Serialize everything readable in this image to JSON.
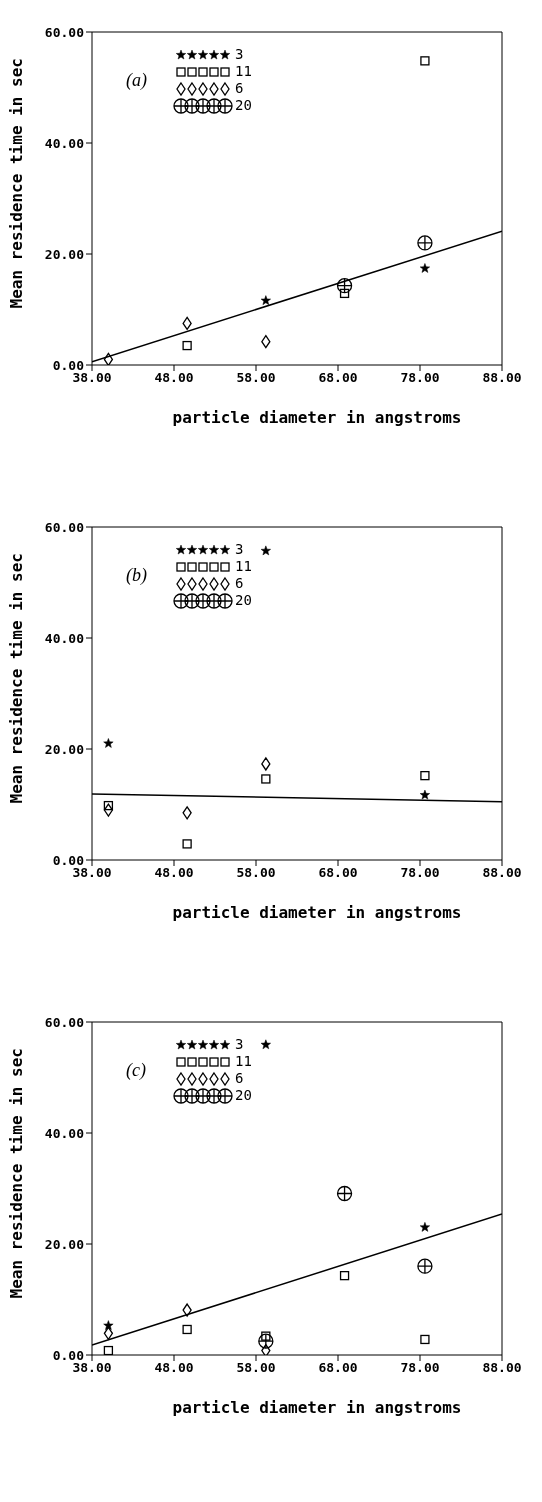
{
  "chart_data": [
    {
      "type": "scatter",
      "title": "(a)",
      "xlabel": "particle diameter in angstroms",
      "ylabel": "Mean residence time in sec",
      "xlim": [
        38,
        88
      ],
      "xticks": [
        {
          "value": 38,
          "label": "38.00"
        },
        {
          "value": 48,
          "label": "48.00"
        },
        {
          "value": 58,
          "label": "58.00"
        },
        {
          "value": 68,
          "label": "68.00"
        },
        {
          "value": 78,
          "label": "78.00"
        },
        {
          "value": 88,
          "label": "88.00"
        }
      ],
      "ylim": [
        0,
        60
      ],
      "yticks": [
        {
          "value": 0,
          "label": "0.00"
        },
        {
          "value": 20,
          "label": "20.00"
        },
        {
          "value": 40,
          "label": "40.00"
        },
        {
          "value": 60,
          "label": "60.00"
        }
      ],
      "grid": false,
      "legend": "top left",
      "series": [
        {
          "name": "3",
          "color": "#000000",
          "marker": "star",
          "x": [
            59.2,
            78.6
          ],
          "values": [
            11.6,
            17.4
          ]
        },
        {
          "name": "11",
          "color": "#000000",
          "marker": "square",
          "x": [
            49.6,
            68.8,
            78.6
          ],
          "values": [
            3.5,
            12.9,
            54.8
          ]
        },
        {
          "name": "6",
          "color": "#000000",
          "marker": "diamond",
          "x": [
            40,
            49.6,
            59.2
          ],
          "values": [
            1.0,
            7.5,
            4.2
          ]
        },
        {
          "name": "20",
          "color": "#000000",
          "marker": "circle",
          "x": [
            68.8,
            78.6
          ],
          "values": [
            14.3,
            22.0
          ]
        },
        {
          "type": "line",
          "color": "#000000",
          "marker": "none",
          "x": [
            38,
            88
          ],
          "values": [
            0.6,
            24.1
          ]
        }
      ]
    },
    {
      "type": "scatter",
      "title": "(b)",
      "xlabel": "particle diameter in angstroms",
      "ylabel": "Mean residence time in sec",
      "xlim": [
        38,
        88
      ],
      "xticks": [
        {
          "value": 38,
          "label": "38.00"
        },
        {
          "value": 48,
          "label": "48.00"
        },
        {
          "value": 58,
          "label": "58.00"
        },
        {
          "value": 68,
          "label": "68.00"
        },
        {
          "value": 78,
          "label": "78.00"
        },
        {
          "value": 88,
          "label": "88.00"
        }
      ],
      "ylim": [
        0,
        60
      ],
      "yticks": [
        {
          "value": 0,
          "label": "0.00"
        },
        {
          "value": 20,
          "label": "20.00"
        },
        {
          "value": 40,
          "label": "40.00"
        },
        {
          "value": 60,
          "label": "60.00"
        }
      ],
      "grid": false,
      "legend": "top left",
      "series": [
        {
          "name": "3",
          "color": "#000000",
          "marker": "star",
          "x": [
            40,
            59.2,
            78.6
          ],
          "values": [
            21.0,
            55.7,
            11.7
          ]
        },
        {
          "name": "11",
          "color": "#000000",
          "marker": "square",
          "x": [
            40,
            49.6,
            59.2,
            78.6
          ],
          "values": [
            9.8,
            2.9,
            14.6,
            15.2
          ]
        },
        {
          "name": "6",
          "color": "#000000",
          "marker": "diamond",
          "x": [
            40,
            49.6,
            59.2
          ],
          "values": [
            9.0,
            8.5,
            17.3
          ]
        },
        {
          "name": "20",
          "color": "#000000",
          "marker": "circle"
        },
        {
          "type": "line",
          "color": "#000000",
          "marker": "none",
          "x": [
            38,
            88
          ],
          "values": [
            11.9,
            10.5
          ]
        }
      ]
    },
    {
      "type": "scatter",
      "title": "(c)",
      "xlabel": "particle diameter in angstroms",
      "ylabel": "Mean residence time in sec",
      "xlim": [
        38,
        88
      ],
      "xticks": [
        {
          "value": 38,
          "label": "38.00"
        },
        {
          "value": 48,
          "label": "48.00"
        },
        {
          "value": 58,
          "label": "58.00"
        },
        {
          "value": 68,
          "label": "68.00"
        },
        {
          "value": 78,
          "label": "78.00"
        },
        {
          "value": 88,
          "label": "88.00"
        }
      ],
      "ylim": [
        0,
        60
      ],
      "yticks": [
        {
          "value": 0,
          "label": "0.00"
        },
        {
          "value": 20,
          "label": "20.00"
        },
        {
          "value": 40,
          "label": "40.00"
        },
        {
          "value": 60,
          "label": "60.00"
        }
      ],
      "grid": false,
      "legend": "top left",
      "series": [
        {
          "name": "3",
          "color": "#000000",
          "marker": "star",
          "x": [
            40,
            59.2,
            78.6
          ],
          "values": [
            5.3,
            55.9,
            23.0
          ]
        },
        {
          "name": "11",
          "color": "#000000",
          "marker": "square",
          "x": [
            40,
            49.6,
            59.2,
            68.8,
            78.6
          ],
          "values": [
            0.8,
            4.6,
            3.4,
            14.3,
            2.8
          ]
        },
        {
          "name": "6",
          "color": "#000000",
          "marker": "diamond",
          "x": [
            40,
            49.6,
            59.2
          ],
          "values": [
            3.9,
            8.1,
            0.8
          ]
        },
        {
          "name": "20",
          "color": "#000000",
          "marker": "circle",
          "x": [
            59.2,
            68.8,
            78.6
          ],
          "values": [
            2.5,
            29.1,
            16.0
          ]
        },
        {
          "type": "line",
          "color": "#000000",
          "marker": "none",
          "x": [
            38,
            88
          ],
          "values": [
            1.8,
            25.4
          ]
        }
      ]
    }
  ]
}
